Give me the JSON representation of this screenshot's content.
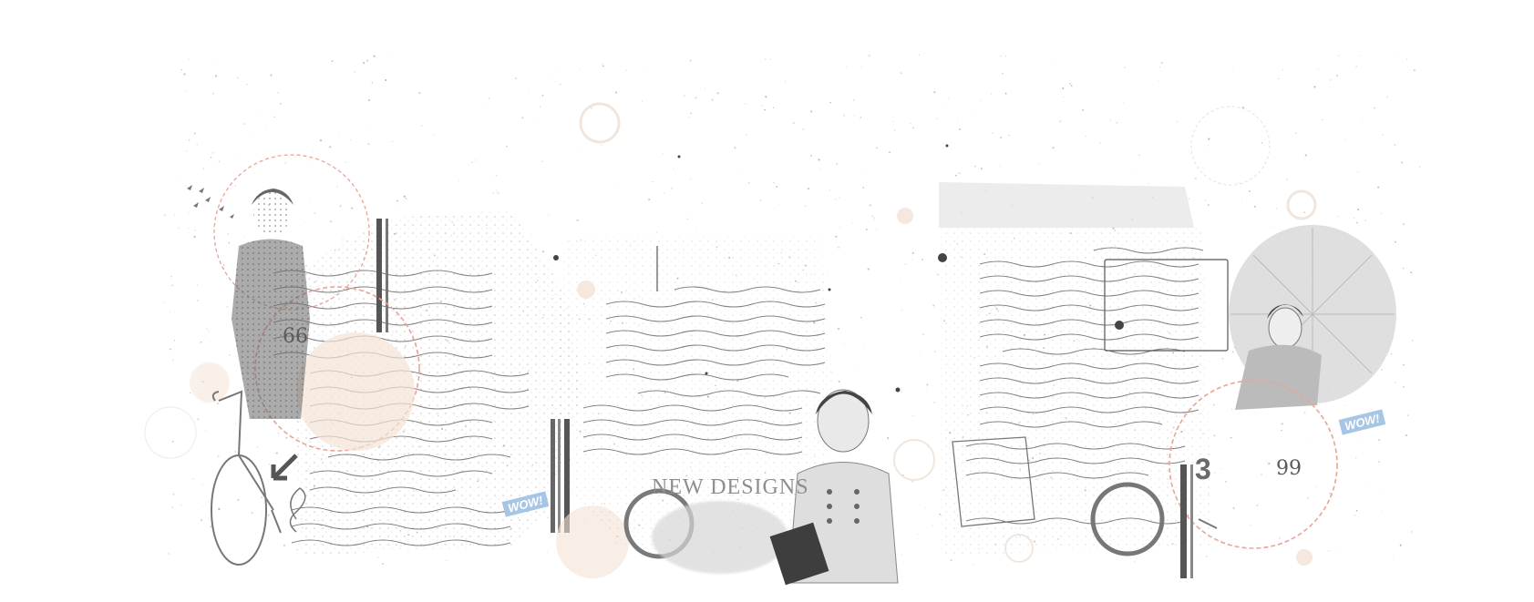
{
  "artwork": {
    "new_designs_text": "NEW DESIGNS",
    "wow_label": "WOW!",
    "open_quote": "66",
    "close_quote": "99",
    "number_badge": "3",
    "colors": {
      "ink": "#555555",
      "light_ink": "#9a9a9a",
      "dashed_circle": "#e8a595",
      "peach_blot": "#f4e2d6",
      "badge_blue": "#a7c6e6"
    }
  }
}
